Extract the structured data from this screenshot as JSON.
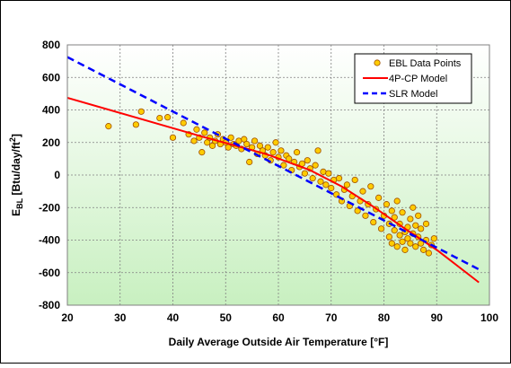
{
  "chart_data": {
    "type": "scatter",
    "xlabel": "Daily Average Outside Air Temperature [°F]",
    "ylabel": {
      "main": "E",
      "sub": "BL",
      "rest": " [Btu/day/ft",
      "sup": "2",
      "end": "]"
    },
    "xlim": [
      20,
      100
    ],
    "ylim": [
      -800,
      800
    ],
    "x_ticks": [
      20,
      30,
      40,
      50,
      60,
      70,
      80,
      90,
      100
    ],
    "y_ticks": [
      -800,
      -600,
      -400,
      -200,
      0,
      200,
      400,
      600,
      800
    ],
    "grid": true,
    "legend_position": "top-right",
    "colors": {
      "plot_bg_top": "#ffffff",
      "plot_bg_bottom": "#c8f0c0",
      "grid": "#808080",
      "points_fill": "#ffcc00",
      "points_stroke": "#a05000",
      "model_4p": "#ff0000",
      "model_slr": "#0000ff"
    },
    "series": [
      {
        "name": "EBL Data Points",
        "kind": "scatter",
        "points": [
          [
            27.8,
            300
          ],
          [
            33.0,
            310
          ],
          [
            34.0,
            390
          ],
          [
            37.5,
            350
          ],
          [
            39.0,
            355
          ],
          [
            40.0,
            230
          ],
          [
            42.0,
            320
          ],
          [
            43.0,
            250
          ],
          [
            44.0,
            210
          ],
          [
            44.5,
            280
          ],
          [
            45.0,
            230
          ],
          [
            45.5,
            140
          ],
          [
            46.0,
            260
          ],
          [
            46.5,
            200
          ],
          [
            47.0,
            230
          ],
          [
            47.5,
            180
          ],
          [
            48.0,
            210
          ],
          [
            48.5,
            250
          ],
          [
            49.0,
            190
          ],
          [
            49.5,
            220
          ],
          [
            50.0,
            200
          ],
          [
            50.5,
            170
          ],
          [
            51.0,
            230
          ],
          [
            51.5,
            190
          ],
          [
            52.0,
            180
          ],
          [
            52.5,
            210
          ],
          [
            53.0,
            160
          ],
          [
            53.5,
            220
          ],
          [
            54.0,
            190
          ],
          [
            54.5,
            80
          ],
          [
            55.0,
            170
          ],
          [
            55.5,
            210
          ],
          [
            56.0,
            130
          ],
          [
            56.5,
            180
          ],
          [
            57.0,
            150
          ],
          [
            57.5,
            120
          ],
          [
            58.0,
            170
          ],
          [
            58.5,
            90
          ],
          [
            59.0,
            140
          ],
          [
            59.5,
            200
          ],
          [
            60.0,
            110
          ],
          [
            60.5,
            150
          ],
          [
            61.0,
            60
          ],
          [
            61.5,
            120
          ],
          [
            62.0,
            100
          ],
          [
            62.5,
            30
          ],
          [
            63.0,
            80
          ],
          [
            63.5,
            140
          ],
          [
            64.0,
            50
          ],
          [
            64.5,
            70
          ],
          [
            65.0,
            10
          ],
          [
            65.5,
            90
          ],
          [
            66.0,
            40
          ],
          [
            66.5,
            -20
          ],
          [
            67.0,
            60
          ],
          [
            67.5,
            150
          ],
          [
            68.0,
            -40
          ],
          [
            68.5,
            20
          ],
          [
            69.0,
            -60
          ],
          [
            69.5,
            10
          ],
          [
            70.0,
            -80
          ],
          [
            70.5,
            -30
          ],
          [
            71.0,
            -120
          ],
          [
            71.5,
            -20
          ],
          [
            72.0,
            -160
          ],
          [
            72.5,
            -90
          ],
          [
            73.0,
            -60
          ],
          [
            73.5,
            -190
          ],
          [
            74.0,
            -130
          ],
          [
            74.5,
            -30
          ],
          [
            75.0,
            -220
          ],
          [
            75.5,
            -160
          ],
          [
            76.0,
            -100
          ],
          [
            76.5,
            -250
          ],
          [
            77.0,
            -180
          ],
          [
            77.5,
            -70
          ],
          [
            78.0,
            -290
          ],
          [
            78.5,
            -210
          ],
          [
            79.0,
            -140
          ],
          [
            79.5,
            -330
          ],
          [
            80.0,
            -250
          ],
          [
            80.5,
            -180
          ],
          [
            81.0,
            -380
          ],
          [
            81.0,
            -300
          ],
          [
            81.5,
            -220
          ],
          [
            81.5,
            -420
          ],
          [
            82.0,
            -340
          ],
          [
            82.0,
            -260
          ],
          [
            82.5,
            -440
          ],
          [
            82.5,
            -160
          ],
          [
            83.0,
            -370
          ],
          [
            83.0,
            -300
          ],
          [
            83.5,
            -410
          ],
          [
            83.5,
            -230
          ],
          [
            84.0,
            -350
          ],
          [
            84.0,
            -460
          ],
          [
            84.5,
            -320
          ],
          [
            84.5,
            -390
          ],
          [
            85.0,
            -270
          ],
          [
            85.0,
            -420
          ],
          [
            85.5,
            -360
          ],
          [
            85.5,
            -200
          ],
          [
            86.0,
            -440
          ],
          [
            86.0,
            -310
          ],
          [
            86.5,
            -380
          ],
          [
            86.5,
            -250
          ],
          [
            87.0,
            -420
          ],
          [
            87.0,
            -330
          ],
          [
            87.5,
            -460
          ],
          [
            88.0,
            -400
          ],
          [
            88.0,
            -300
          ],
          [
            88.5,
            -480
          ],
          [
            89.0,
            -430
          ],
          [
            89.5,
            -390
          ]
        ]
      },
      {
        "name": "4P-CP Model",
        "kind": "line",
        "points": [
          [
            20,
            475
          ],
          [
            46,
            232
          ],
          [
            54,
            162
          ],
          [
            58,
            125
          ],
          [
            66,
            30
          ],
          [
            72,
            -70
          ],
          [
            78,
            -195
          ],
          [
            84,
            -330
          ],
          [
            90,
            -460
          ],
          [
            98,
            -660
          ]
        ]
      },
      {
        "name": "SLR Model",
        "kind": "dashed-line",
        "points": [
          [
            20,
            725
          ],
          [
            98,
            -580
          ]
        ]
      }
    ]
  }
}
